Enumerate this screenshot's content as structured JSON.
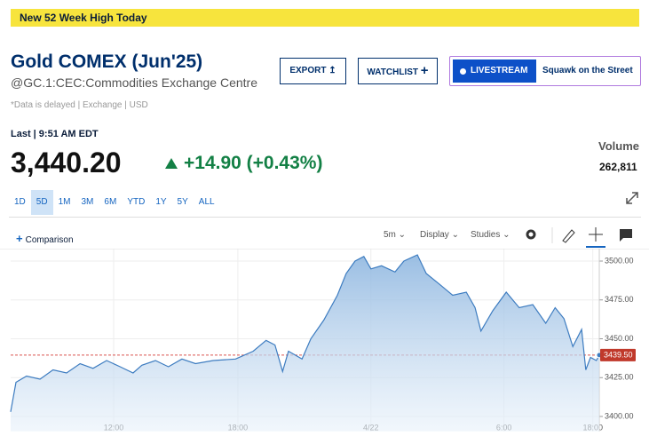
{
  "banner": "New 52 Week High Today",
  "header": {
    "title": "Gold COMEX (Jun'25)",
    "symbol": "@GC.1:CEC:Commodities Exchange Centre",
    "delay_note": "*Data is delayed | Exchange | USD"
  },
  "buttons": {
    "export": "EXPORT",
    "watchlist": "WATCHLIST",
    "livestream": "LIVESTREAM",
    "show": "Squawk on the Street"
  },
  "quote": {
    "last": "Last | 9:51 AM EDT",
    "price": "3,440.20",
    "change": "+14.90 (+0.43%)",
    "volume_label": "Volume",
    "volume": "262,811"
  },
  "ranges": [
    "1D",
    "5D",
    "1M",
    "3M",
    "6M",
    "YTD",
    "1Y",
    "5Y",
    "ALL"
  ],
  "toolbar": {
    "comparison": "Comparison",
    "interval": "5m",
    "display": "Display",
    "studies": "Studies"
  },
  "chart_data": {
    "type": "line",
    "x": [
      0,
      0.9,
      2.7,
      5,
      7.2,
      9.5,
      11.8,
      14,
      16.3,
      18.6,
      20.8,
      22.3,
      24.6,
      26.8,
      29.1,
      31.4,
      34.4,
      38.2,
      41.2,
      43.4,
      44.9,
      46.2,
      47.2,
      49.5,
      51,
      53.2,
      55.5,
      57,
      58.5,
      60,
      61.2,
      63,
      65.3,
      66.8,
      69.1,
      70.6,
      72.9,
      75.1,
      77.4,
      78.9,
      79.9,
      81.9,
      84.2,
      86.4,
      88.7,
      90.9,
      92.5,
      94,
      95.5,
      97,
      97.7,
      98.5,
      99.5,
      100
    ],
    "series": [
      {
        "color": "#3d7cc0",
        "values": [
          3403,
          3422,
          3426,
          3424,
          3430,
          3428,
          3434,
          3431,
          3436,
          3432,
          3428,
          3433,
          3436,
          3432,
          3437,
          3434,
          3436,
          3437,
          3442,
          3449,
          3446,
          3429,
          3442,
          3437,
          3450,
          3462,
          3478,
          3492,
          3500,
          3503,
          3495,
          3497,
          3493,
          3500,
          3504,
          3492,
          3485,
          3478,
          3480,
          3470,
          3455,
          3468,
          3480,
          3470,
          3472,
          3460,
          3470,
          3463,
          3445,
          3456,
          3430,
          3438,
          3436,
          3439.5
        ]
      }
    ],
    "xlim": [
      0,
      100
    ],
    "xticks": [
      {
        "value": 17.5,
        "label": "12:00"
      },
      {
        "value": 38.6,
        "label": "18:00"
      },
      {
        "value": 61.2,
        "label": "4/22"
      },
      {
        "value": 83.8,
        "label": "6:00"
      },
      {
        "value": 98.9,
        "label": "18:00"
      }
    ],
    "ylim": [
      3395,
      3506
    ],
    "yticks": [
      {
        "value": 3400,
        "label": "3400.00"
      },
      {
        "value": 3425,
        "label": "3425.00"
      },
      {
        "value": 3450,
        "label": "3450.00"
      },
      {
        "value": 3475,
        "label": "3475.00"
      },
      {
        "value": 3500,
        "label": "3500.00"
      }
    ],
    "last_price": {
      "value": 3439.5,
      "label": "3439.50"
    },
    "grid": true
  }
}
